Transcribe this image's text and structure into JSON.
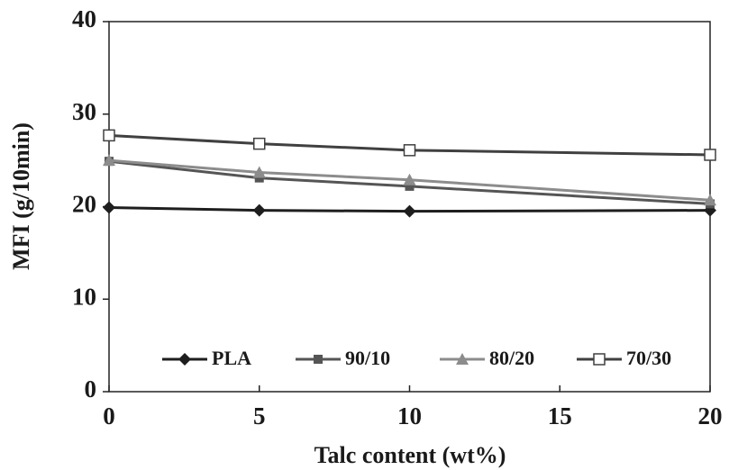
{
  "chart_data": {
    "type": "line",
    "x_label": "Talc content (wt%)",
    "y_label": "MFI (g/10min)",
    "x": [
      0,
      5,
      10,
      20
    ],
    "series": [
      {
        "name": "PLA",
        "color": "#1e1e1e",
        "marker": "diamond",
        "values": [
          19.9,
          19.6,
          19.5,
          19.6
        ]
      },
      {
        "name": "90/10",
        "color": "#555555",
        "marker": "square",
        "values": [
          24.9,
          23.1,
          22.2,
          20.3
        ]
      },
      {
        "name": "80/20",
        "color": "#8c8c8c",
        "marker": "triangle",
        "values": [
          25.0,
          23.7,
          22.9,
          20.7
        ]
      },
      {
        "name": "70/30",
        "color": "#404040",
        "marker": "open-square",
        "values": [
          27.7,
          26.8,
          26.1,
          25.6
        ]
      }
    ],
    "xlim": [
      0,
      20
    ],
    "xticks": [
      0,
      5,
      10,
      15,
      20
    ],
    "ylim": [
      0,
      40
    ],
    "yticks": [
      0,
      10,
      20,
      30,
      40
    ],
    "grid": false,
    "legend": "bottom"
  }
}
